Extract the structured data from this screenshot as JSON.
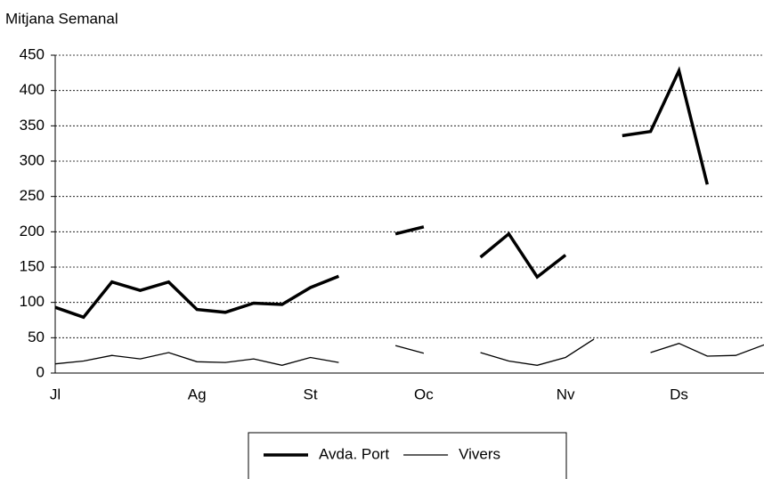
{
  "chart_data": {
    "type": "line",
    "y_label": "Mitjana Semanal",
    "categories": [
      "Jl",
      null,
      null,
      null,
      null,
      "Ag",
      null,
      null,
      null,
      "St",
      null,
      null,
      null,
      "Oc",
      null,
      null,
      null,
      null,
      "Nv",
      null,
      null,
      null,
      "Ds",
      null,
      null,
      null
    ],
    "series": [
      {
        "name": "Avda. Port",
        "color": "#000000",
        "width": 3.5,
        "values": [
          93,
          79,
          129,
          117,
          129,
          90,
          86,
          99,
          97,
          121,
          137,
          null,
          197,
          207,
          null,
          164,
          197,
          136,
          167,
          null,
          336,
          342,
          428,
          267,
          null,
          null
        ]
      },
      {
        "name": "Vivers",
        "color": "#000000",
        "width": 1.3,
        "values": [
          13,
          17,
          25,
          20,
          29,
          16,
          15,
          20,
          11,
          22,
          15,
          null,
          39,
          28,
          null,
          29,
          17,
          11,
          22,
          48,
          null,
          29,
          42,
          24,
          25,
          40
        ]
      }
    ],
    "ylim": [
      0,
      450
    ],
    "yticks": [
      0,
      50,
      100,
      150,
      200,
      250,
      300,
      350,
      400,
      450
    ],
    "grid": true
  }
}
